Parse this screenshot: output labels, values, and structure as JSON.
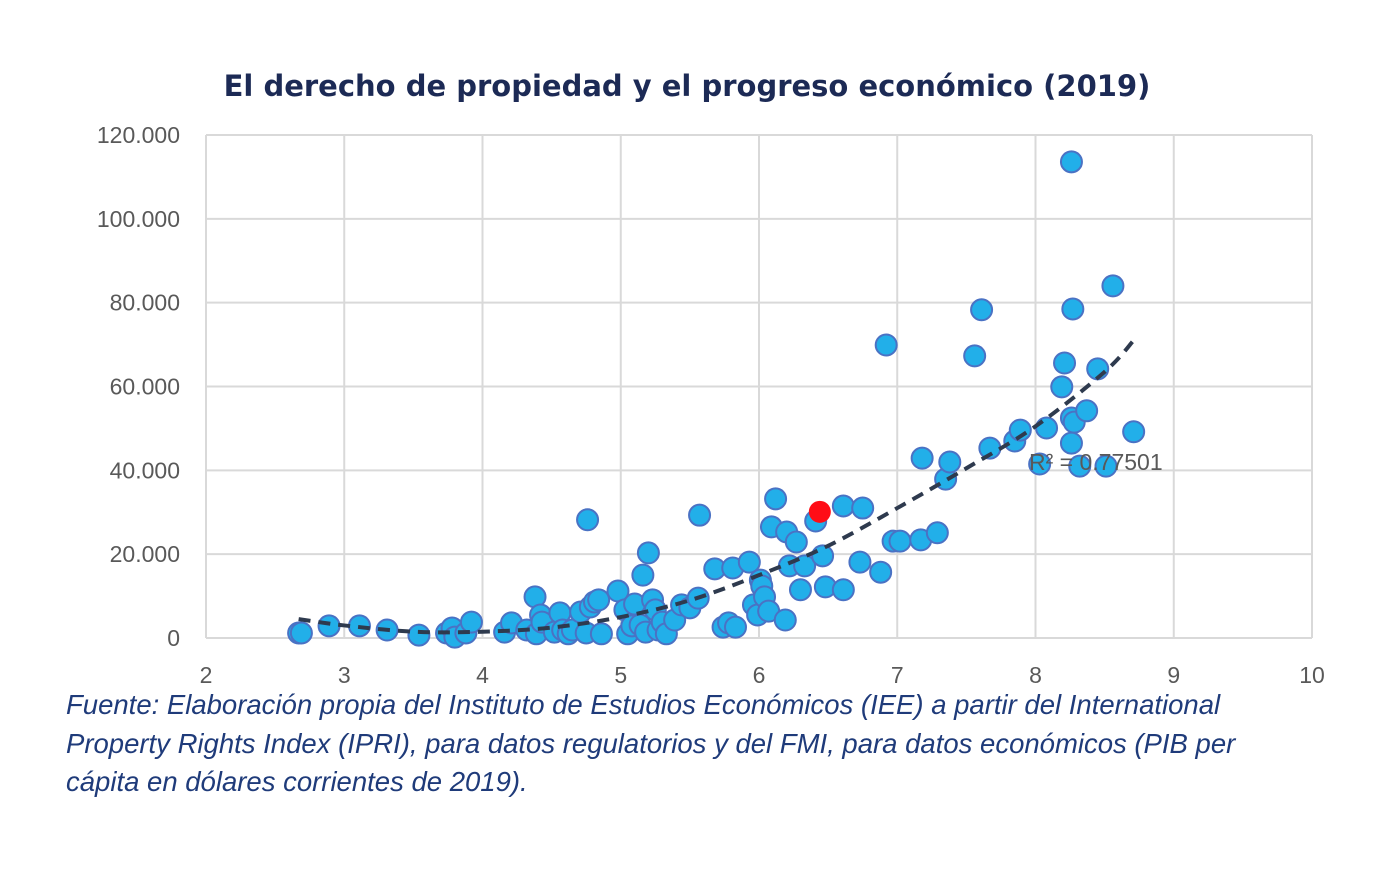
{
  "chart_data": {
    "type": "scatter",
    "title": "El derecho de propiedad y el progreso económico (2019)",
    "xlabel": "",
    "ylabel": "",
    "xlim": [
      2,
      10
    ],
    "ylim": [
      0,
      120000
    ],
    "x_ticks": [
      "2",
      "3",
      "4",
      "5",
      "6",
      "7",
      "8",
      "9",
      "10"
    ],
    "y_ticks": [
      "0",
      "20.000",
      "40.000",
      "60.000",
      "80.000",
      "100.000",
      "120.000"
    ],
    "grid": true,
    "legend": "none",
    "colors": {
      "points": "#22afe9",
      "point_border": "#4a72c4",
      "highlight": "#ff0d16",
      "trendline": "#2e3a4e",
      "grid": "#d9d9d9"
    },
    "series": [
      {
        "points": [
          [
            2.67,
            1200
          ],
          [
            2.69,
            1200
          ],
          [
            2.89,
            2900
          ],
          [
            3.11,
            2900
          ],
          [
            3.31,
            1900
          ],
          [
            3.54,
            700
          ],
          [
            3.74,
            1200
          ],
          [
            3.78,
            2400
          ],
          [
            3.8,
            200
          ],
          [
            3.88,
            1200
          ],
          [
            3.92,
            3800
          ],
          [
            4.16,
            1400
          ],
          [
            4.21,
            3600
          ],
          [
            4.32,
            1900
          ],
          [
            4.38,
            9800
          ],
          [
            4.39,
            1000
          ],
          [
            4.42,
            5500
          ],
          [
            4.43,
            3800
          ],
          [
            4.52,
            1400
          ],
          [
            4.56,
            6000
          ],
          [
            4.58,
            1900
          ],
          [
            4.62,
            1000
          ],
          [
            4.65,
            1900
          ],
          [
            4.76,
            28200
          ],
          [
            4.71,
            6200
          ],
          [
            4.75,
            1200
          ],
          [
            4.78,
            7400
          ],
          [
            4.81,
            8600
          ],
          [
            4.84,
            9100
          ],
          [
            4.86,
            1000
          ],
          [
            4.98,
            11200
          ],
          [
            5.03,
            6700
          ],
          [
            5.05,
            1000
          ],
          [
            5.08,
            2900
          ],
          [
            5.1,
            8100
          ],
          [
            5.14,
            3100
          ],
          [
            5.16,
            15000
          ],
          [
            5.18,
            1400
          ],
          [
            5.2,
            20300
          ],
          [
            5.23,
            9100
          ],
          [
            5.25,
            6700
          ],
          [
            5.27,
            1900
          ],
          [
            5.3,
            3800
          ],
          [
            5.33,
            1000
          ],
          [
            5.39,
            4300
          ],
          [
            5.44,
            7900
          ],
          [
            5.5,
            7200
          ],
          [
            5.57,
            29300
          ],
          [
            5.56,
            9500
          ],
          [
            5.68,
            16500
          ],
          [
            5.74,
            2600
          ],
          [
            5.78,
            3600
          ],
          [
            5.81,
            16700
          ],
          [
            5.83,
            2600
          ],
          [
            5.93,
            18100
          ],
          [
            5.96,
            7900
          ],
          [
            5.99,
            5500
          ],
          [
            6.01,
            13800
          ],
          [
            6.02,
            12400
          ],
          [
            6.04,
            9800
          ],
          [
            6.07,
            6400
          ],
          [
            6.09,
            26500
          ],
          [
            6.12,
            33200
          ],
          [
            6.19,
            4300
          ],
          [
            6.2,
            25300
          ],
          [
            6.22,
            17200
          ],
          [
            6.27,
            22900
          ],
          [
            6.3,
            11500
          ],
          [
            6.33,
            17200
          ],
          [
            6.41,
            27900
          ],
          [
            6.46,
            19600
          ],
          [
            6.48,
            12200
          ],
          [
            6.61,
            11500
          ],
          [
            6.61,
            31500
          ],
          [
            6.73,
            18100
          ],
          [
            6.75,
            31000
          ],
          [
            6.88,
            15700
          ],
          [
            6.92,
            69900
          ],
          [
            6.97,
            23100
          ],
          [
            7.02,
            23100
          ],
          [
            7.17,
            23400
          ],
          [
            7.18,
            42900
          ],
          [
            7.29,
            25100
          ],
          [
            7.35,
            37900
          ],
          [
            7.38,
            42000
          ],
          [
            7.56,
            67300
          ],
          [
            7.61,
            78300
          ],
          [
            7.67,
            45300
          ],
          [
            7.85,
            47000
          ],
          [
            7.89,
            49600
          ],
          [
            8.03,
            41500
          ],
          [
            8.08,
            50100
          ],
          [
            8.19,
            59900
          ],
          [
            8.21,
            65600
          ],
          [
            8.26,
            113600
          ],
          [
            8.27,
            78500
          ],
          [
            8.26,
            52500
          ],
          [
            8.26,
            46500
          ],
          [
            8.28,
            51500
          ],
          [
            8.32,
            41000
          ],
          [
            8.37,
            54200
          ],
          [
            8.45,
            64200
          ],
          [
            8.51,
            41000
          ],
          [
            8.56,
            84000
          ],
          [
            8.71,
            49200
          ]
        ]
      }
    ],
    "highlight_point": [
      6.44,
      30100
    ],
    "trendline": {
      "style": "dashed",
      "points": [
        [
          2.67,
          4500
        ],
        [
          3.0,
          3000
        ],
        [
          3.5,
          1500
        ],
        [
          4.0,
          1500
        ],
        [
          4.5,
          2500
        ],
        [
          5.0,
          5000
        ],
        [
          5.5,
          9000
        ],
        [
          6.0,
          15000
        ],
        [
          6.5,
          22000
        ],
        [
          7.0,
          31000
        ],
        [
          7.5,
          40500
        ],
        [
          8.0,
          50500
        ],
        [
          8.5,
          63500
        ],
        [
          8.71,
          71000
        ]
      ],
      "label": "R² = 0.77501"
    }
  },
  "caption": "Fuente: Elaboración propia del Instituto de Estudios Económicos (IEE) a partir del International Property Rights Index (IPRI), para datos regulatorios y del FMI, para datos económicos (PIB per cápita en dólares corrientes de 2019)."
}
